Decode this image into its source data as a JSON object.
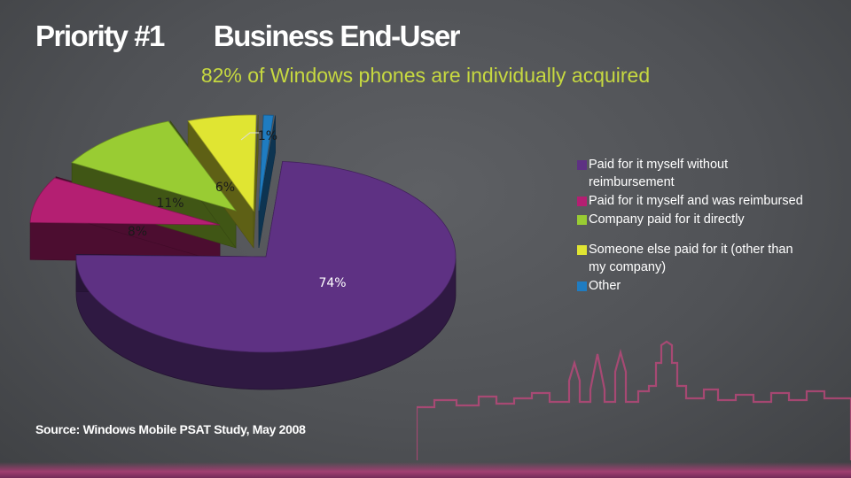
{
  "header": {
    "title_left": "Priority #1",
    "title_right": "Business End-User",
    "subtitle": "82% of Windows phones are individually acquired"
  },
  "colors": {
    "purple": "#5e3183",
    "magenta": "#b41f72",
    "green": "#99cc33",
    "yellow": "#e0e532",
    "blue": "#1f7cc1",
    "subtitle": "#c7d940"
  },
  "chart_data": {
    "type": "pie",
    "title": "",
    "three_d": true,
    "legend_position": "right",
    "slices": [
      {
        "label": "Paid for it myself without reimbursement",
        "value": 74,
        "display": "74%",
        "color": "#5e3183"
      },
      {
        "label": "Paid for it myself and was reimbursed",
        "value": 8,
        "display": "8%",
        "color": "#b41f72"
      },
      {
        "label": "Company paid for it directly",
        "value": 11,
        "display": "11%",
        "color": "#99cc33"
      },
      {
        "label": "Someone else paid for it (other than my company)",
        "value": 6,
        "display": "6%",
        "color": "#e0e532"
      },
      {
        "label": "Other",
        "value": 1,
        "display": "1%",
        "color": "#1f7cc1"
      }
    ]
  },
  "legend": {
    "items": [
      {
        "label": "Paid for it myself without reimbursement",
        "color": "#5e3183"
      },
      {
        "label": "Paid for it myself and was reimbursed",
        "color": "#b41f72"
      },
      {
        "label": "Company paid for it directly",
        "color": "#99cc33"
      },
      {
        "label": "Someone else paid for it (other than my company)",
        "color": "#e0e532"
      },
      {
        "label": "Other",
        "color": "#1f7cc1"
      }
    ]
  },
  "footer": {
    "source": "Source: Windows Mobile PSAT Study, May 2008"
  }
}
